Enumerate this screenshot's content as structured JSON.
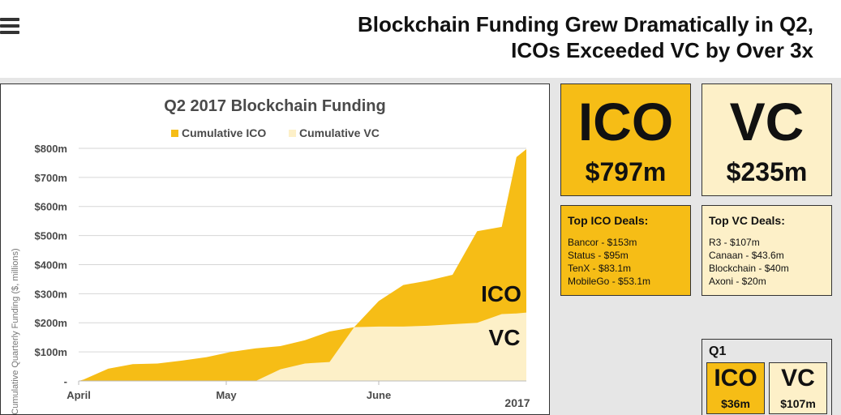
{
  "header": {
    "title_line1": "Blockchain Funding Grew Dramatically in Q2,",
    "title_line2": "ICOs Exceeded VC by Over 3x"
  },
  "colors": {
    "ico": "#f6bd16",
    "vc": "#fdf0c8",
    "grid": "#d6d6d6"
  },
  "chart_data": {
    "type": "area",
    "title": "Q2 2017 Blockchain Funding",
    "ylabel": "Cumulative Quarterly Funding ($, millions)",
    "xlabel": "",
    "x_tick_labels": [
      "April",
      "May",
      "June"
    ],
    "year_label": "2017",
    "y_ticks": [
      0,
      100,
      200,
      300,
      400,
      500,
      600,
      700,
      800
    ],
    "y_tick_labels": [
      "-",
      "$100m",
      "$200m",
      "$300m",
      "$400m",
      "$500m",
      "$600m",
      "$700m",
      "$800m"
    ],
    "ylim": [
      0,
      850
    ],
    "grid": true,
    "legend_position": "top",
    "stacked": false,
    "x_days": [
      0,
      1,
      6,
      11,
      16,
      21,
      26,
      31,
      36,
      41,
      46,
      51,
      56,
      61,
      66,
      71,
      76,
      81,
      86,
      89,
      91
    ],
    "series": [
      {
        "name": "Cumulative ICO",
        "values": [
          0,
          5,
          42,
          58,
          60,
          70,
          82,
          100,
          112,
          120,
          140,
          170,
          185,
          275,
          330,
          345,
          365,
          515,
          530,
          770,
          797
        ],
        "area_label": "ICO"
      },
      {
        "name": "Cumulative VC",
        "values": [
          0,
          0,
          0,
          0,
          0,
          0,
          0,
          0,
          0,
          40,
          60,
          65,
          185,
          187,
          187,
          190,
          195,
          200,
          230,
          232,
          235
        ],
        "area_label": "VC"
      }
    ]
  },
  "summary": {
    "ico": {
      "label": "ICO",
      "value": "$797m"
    },
    "vc": {
      "label": "VC",
      "value": "$235m"
    }
  },
  "top_ico_deals": {
    "title": "Top ICO Deals:",
    "items": [
      "Bancor - $153m",
      "Status - $95m",
      "TenX - $83.1m",
      "MobileGo - $53.1m"
    ]
  },
  "top_vc_deals": {
    "title": "Top VC Deals:",
    "items": [
      "R3 - $107m",
      "Canaan - $43.6m",
      "Blockchain - $40m",
      "Axoni - $20m"
    ]
  },
  "q1": {
    "title": "Q1",
    "ico": {
      "label": "ICO",
      "value": "$36m"
    },
    "vc": {
      "label": "VC",
      "value": "$107m"
    }
  }
}
